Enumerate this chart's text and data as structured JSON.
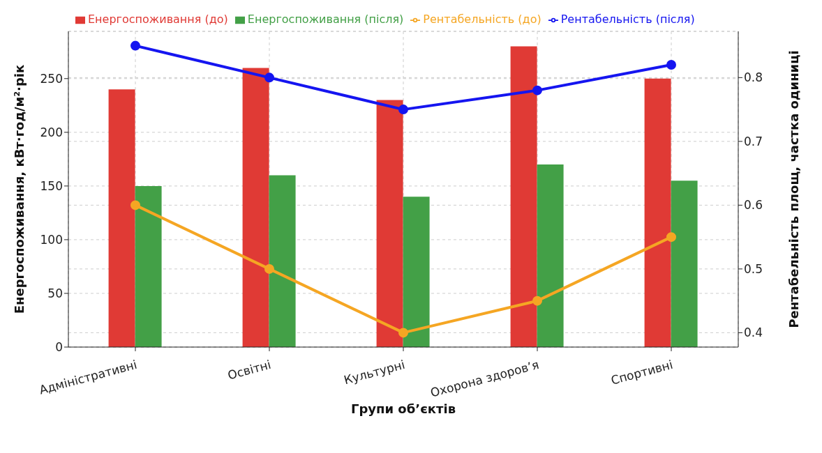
{
  "chart_data": {
    "type": "bar",
    "xlabel": "Групи об’єктів",
    "ylabel": "Енергоспоживання, кВт·год/м²·рік",
    "y2label": "Рентабельність площ, частка одиниці",
    "categories": [
      "Адміністративні",
      "Освітні",
      "Культурні",
      "Охорона здоров’я",
      "Спортивні"
    ],
    "series": [
      {
        "name": "Енергоспоживання (до)",
        "color": "#e03a35",
        "values": [
          240,
          260,
          230,
          280,
          250
        ]
      },
      {
        "name": "Енергоспоживання (після)",
        "color": "#43a047",
        "values": [
          150,
          160,
          140,
          170,
          155
        ]
      },
      {
        "name": "Рентабельність (до)",
        "type": "line",
        "axis": "y2",
        "color": "#f5a623",
        "values": [
          0.6,
          0.5,
          0.4,
          0.45,
          0.55
        ]
      },
      {
        "name": "Рентабельність (після)",
        "type": "line",
        "axis": "y2",
        "color": "#1515f0",
        "values": [
          0.85,
          0.8,
          0.75,
          0.78,
          0.82
        ]
      }
    ],
    "ylim": [
      0,
      294
    ],
    "yticks": [
      0,
      50,
      100,
      150,
      200,
      250
    ],
    "y2lim": [
      0.3775,
      0.8725
    ],
    "y2ticks": [
      0.4,
      0.5,
      0.6,
      0.7,
      0.8
    ],
    "grid": true,
    "legend": "top left",
    "marker": "circle",
    "line_style": "solid"
  }
}
